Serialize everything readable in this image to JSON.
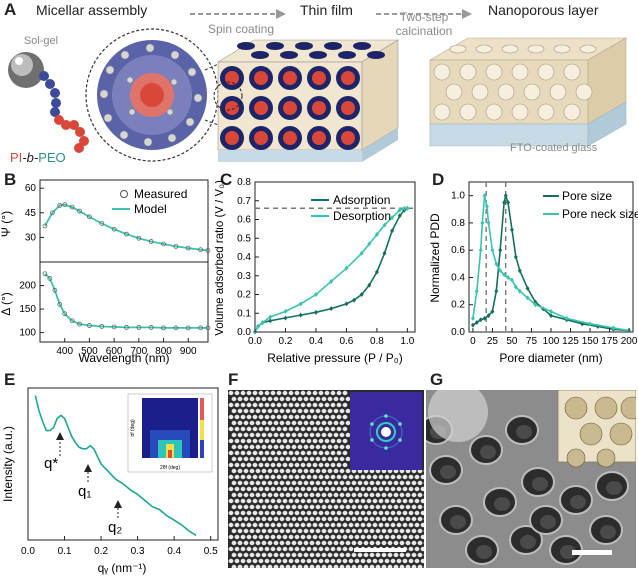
{
  "panel_a": {
    "label": "A",
    "stage_micellar": "Micellar assembly",
    "stage_thin_film": "Thin film",
    "stage_nanoporous": "Nanoporous layer",
    "step_spin": "Spin coating",
    "step_calc_1": "Two-step",
    "step_calc_2": "calcination",
    "solgel": "Sol-gel",
    "polymer_pi": "PI",
    "polymer_b": "-b-",
    "polymer_peo": "PEO",
    "substrate": "FTO-coated glass",
    "colors": {
      "pi": "#d9473a",
      "peo": "#3d4a9a",
      "solgel": "#cfcfcf",
      "film_blue": "#1e2468",
      "film_tan": "#f1e6cf"
    }
  },
  "panel_b": {
    "label": "B",
    "top_ylabel": "Ψ (°)",
    "bottom_ylabel": "Δ (°)",
    "xlabel": "Wavelength (nm)",
    "legend_measured": "Measured",
    "legend_model": "Model",
    "top_yticks": [
      "30",
      "45",
      "60"
    ],
    "bottom_yticks": [
      "100",
      "150",
      "200"
    ],
    "xticks": [
      "400",
      "500",
      "600",
      "700",
      "800",
      "900"
    ]
  },
  "panel_c": {
    "label": "C",
    "ylabel": "Volume adsorbed ratio (V / V₀)",
    "xlabel": "Relative pressure (P / P₀)",
    "legend_adsorption": "Adsorption",
    "legend_desorption": "Desorption",
    "yticks": [
      "0.0",
      "0.1",
      "0.2",
      "0.3",
      "0.4",
      "0.5",
      "0.6",
      "0.7",
      "0.8"
    ],
    "xticks": [
      "0.0",
      "0.2",
      "0.4",
      "0.6",
      "0.8",
      "1.0"
    ]
  },
  "panel_d": {
    "label": "D",
    "ylabel": "Normalized PDD",
    "xlabel": "Pore diameter (nm)",
    "legend_pore": "Pore size",
    "legend_neck": "Pore neck size",
    "yticks": [
      "0.0",
      "0.2",
      "0.4",
      "0.6",
      "0.8",
      "1.0"
    ],
    "xticks": [
      "0",
      "25",
      "50",
      "75",
      "100",
      "125",
      "150",
      "175",
      "200"
    ]
  },
  "panel_e": {
    "label": "E",
    "ylabel": "Intensity (a.u.)",
    "xlabel": "qᵧ (nm⁻¹)",
    "xticks": [
      "0.0",
      "0.1",
      "0.2",
      "0.3",
      "0.4",
      "0.5"
    ],
    "peak_qstar": "q*",
    "peak_q1": "q₁",
    "peak_q2": "q₂",
    "inset_xlabel": "2θf (deg)",
    "inset_ylabel": "αf (deg)"
  },
  "panel_f": {
    "label": "F"
  },
  "panel_g": {
    "label": "G"
  },
  "chart_data": [
    {
      "type": "line",
      "panel": "B-top",
      "xlabel": "Wavelength (nm)",
      "ylabel": "Ψ (°)",
      "xlim": [
        300,
        980
      ],
      "ylim": [
        15,
        65
      ],
      "series": [
        {
          "name": "Measured",
          "x": [
            320,
            350,
            380,
            400,
            430,
            460,
            500,
            550,
            600,
            650,
            700,
            750,
            800,
            850,
            900,
            950,
            980
          ],
          "y": [
            37,
            45,
            49.5,
            50,
            48.5,
            46,
            42.5,
            38.5,
            35,
            32,
            29.5,
            27.5,
            26,
            24.5,
            23.5,
            22.5,
            22
          ]
        },
        {
          "name": "Model",
          "x": [
            320,
            350,
            380,
            400,
            430,
            460,
            500,
            550,
            600,
            650,
            700,
            750,
            800,
            850,
            900,
            950,
            980
          ],
          "y": [
            37,
            45,
            49.5,
            50,
            48.5,
            46,
            42.5,
            38.5,
            35,
            32,
            29.5,
            27.5,
            26,
            24.5,
            23.5,
            22.5,
            22
          ]
        }
      ]
    },
    {
      "type": "line",
      "panel": "B-bottom",
      "xlabel": "Wavelength (nm)",
      "ylabel": "Δ (°)",
      "xlim": [
        300,
        980
      ],
      "ylim": [
        80,
        250
      ],
      "series": [
        {
          "name": "Measured",
          "x": [
            320,
            340,
            360,
            380,
            400,
            430,
            460,
            500,
            550,
            600,
            650,
            700,
            750,
            800,
            850,
            900,
            950,
            980
          ],
          "y": [
            225,
            215,
            190,
            160,
            140,
            125,
            118,
            115,
            113,
            112,
            111,
            111,
            111,
            110,
            110,
            110,
            110,
            110
          ]
        },
        {
          "name": "Model",
          "x": [
            320,
            340,
            360,
            380,
            400,
            430,
            460,
            500,
            550,
            600,
            650,
            700,
            750,
            800,
            850,
            900,
            950,
            980
          ],
          "y": [
            225,
            215,
            190,
            160,
            140,
            125,
            118,
            115,
            113,
            112,
            111,
            111,
            111,
            110,
            110,
            110,
            110,
            110
          ]
        }
      ]
    },
    {
      "type": "line",
      "panel": "C",
      "xlabel": "Relative pressure (P / P₀)",
      "ylabel": "Volume adsorbed ratio (V / V₀)",
      "xlim": [
        0,
        1.05
      ],
      "ylim": [
        0,
        0.8
      ],
      "series": [
        {
          "name": "Adsorption",
          "x": [
            0.0,
            0.02,
            0.05,
            0.1,
            0.2,
            0.3,
            0.4,
            0.5,
            0.6,
            0.65,
            0.7,
            0.75,
            0.8,
            0.85,
            0.9,
            0.95,
            0.98,
            1.0
          ],
          "y": [
            0.0,
            0.03,
            0.05,
            0.06,
            0.075,
            0.09,
            0.105,
            0.125,
            0.15,
            0.17,
            0.2,
            0.25,
            0.32,
            0.42,
            0.54,
            0.62,
            0.65,
            0.66
          ]
        },
        {
          "name": "Desorption",
          "x": [
            1.0,
            0.98,
            0.95,
            0.9,
            0.85,
            0.8,
            0.75,
            0.7,
            0.6,
            0.5,
            0.4,
            0.3,
            0.2,
            0.1,
            0.05,
            0.02,
            0.0
          ],
          "y": [
            0.66,
            0.66,
            0.65,
            0.61,
            0.57,
            0.52,
            0.47,
            0.42,
            0.34,
            0.27,
            0.2,
            0.15,
            0.11,
            0.08,
            0.05,
            0.03,
            0.0
          ]
        }
      ],
      "reference_line_y": 0.66
    },
    {
      "type": "line",
      "panel": "D",
      "xlabel": "Pore diameter (nm)",
      "ylabel": "Normalized PDD",
      "xlim": [
        -5,
        205
      ],
      "ylim": [
        0,
        1.1
      ],
      "series": [
        {
          "name": "Pore size",
          "x": [
            0,
            5,
            10,
            15,
            20,
            25,
            30,
            35,
            40,
            42,
            45,
            50,
            55,
            60,
            70,
            80,
            90,
            100,
            120,
            140,
            160,
            180,
            200
          ],
          "y": [
            0.05,
            0.07,
            0.09,
            0.1,
            0.12,
            0.15,
            0.3,
            0.6,
            0.95,
            1.0,
            0.95,
            0.75,
            0.55,
            0.45,
            0.32,
            0.22,
            0.17,
            0.12,
            0.09,
            0.06,
            0.04,
            0.02,
            0.01
          ]
        },
        {
          "name": "Pore neck size",
          "x": [
            0,
            5,
            10,
            12,
            15,
            18,
            20,
            25,
            30,
            35,
            40,
            45,
            50,
            55,
            60,
            70,
            80,
            100,
            120,
            150,
            180,
            200
          ],
          "y": [
            0.1,
            0.3,
            0.6,
            0.8,
            1.0,
            0.92,
            0.8,
            0.6,
            0.5,
            0.45,
            0.42,
            0.4,
            0.38,
            0.33,
            0.3,
            0.25,
            0.2,
            0.15,
            0.1,
            0.06,
            0.03,
            0.01
          ]
        }
      ],
      "reference_lines_x": [
        17,
        42
      ]
    },
    {
      "type": "line",
      "panel": "E",
      "xlabel": "qᵧ (nm⁻¹)",
      "ylabel": "Intensity (a.u.)",
      "xlim": [
        0,
        0.52
      ],
      "series": [
        {
          "x": [
            0.02,
            0.03,
            0.04,
            0.05,
            0.06,
            0.07,
            0.08,
            0.09,
            0.1,
            0.11,
            0.12,
            0.13,
            0.14,
            0.15,
            0.16,
            0.17,
            0.18,
            0.19,
            0.2,
            0.22,
            0.24,
            0.26,
            0.28,
            0.3,
            0.32,
            0.34,
            0.36,
            0.38,
            0.4,
            0.42,
            0.44,
            0.46
          ],
          "y": [
            0.95,
            0.85,
            0.78,
            0.72,
            0.72,
            0.74,
            0.8,
            0.82,
            0.8,
            0.74,
            0.68,
            0.64,
            0.61,
            0.6,
            0.6,
            0.62,
            0.6,
            0.55,
            0.5,
            0.45,
            0.4,
            0.37,
            0.33,
            0.3,
            0.26,
            0.22,
            0.2,
            0.16,
            0.13,
            0.1,
            0.06,
            0.03
          ]
        }
      ]
    }
  ]
}
